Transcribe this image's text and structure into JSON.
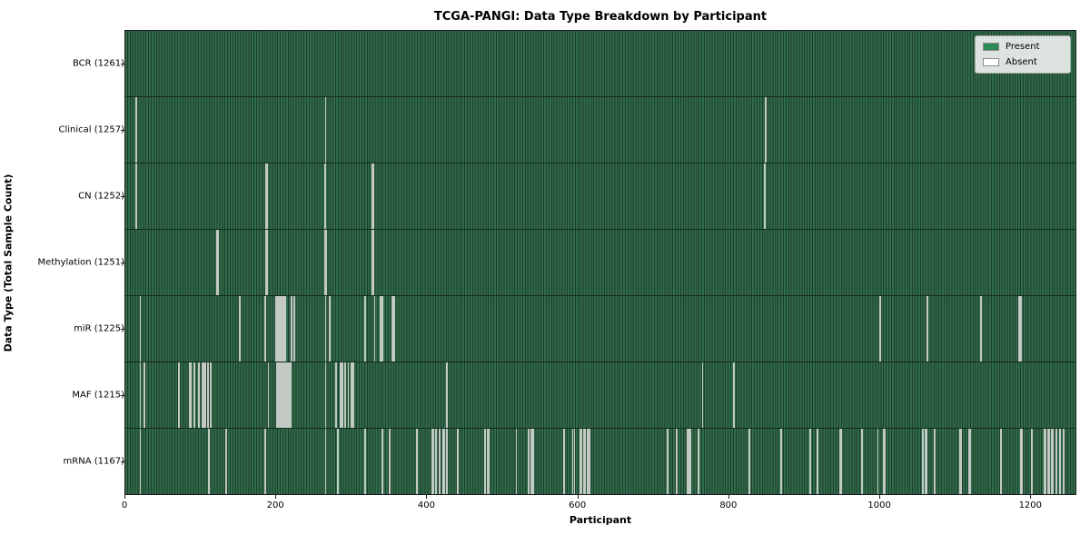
{
  "chart_data": {
    "type": "heatmap",
    "title": "TCGA-PANGI: Data Type Breakdown by Participant",
    "xlabel": "Participant",
    "ylabel": "Data Type (Total Sample Count)",
    "x_ticks": [
      0,
      200,
      400,
      600,
      800,
      1000,
      1200
    ],
    "total_participants": 1261,
    "grid": false,
    "legend": {
      "position": "upper-right",
      "entries": [
        {
          "label": "Present",
          "color": "#2e8b57"
        },
        {
          "label": "Absent",
          "color": "#ffffff"
        }
      ]
    },
    "rows": [
      {
        "name": "BCR",
        "label": "BCR (1261)",
        "present_count": 1261,
        "absent_participants": []
      },
      {
        "name": "Clinical",
        "label": "Clinical (1257)",
        "present_count": 1257,
        "absent_participants": [
          13,
          14,
          265,
          849
        ]
      },
      {
        "name": "CN",
        "label": "CN (1252)",
        "present_count": 1252,
        "absent_participants": [
          13,
          14,
          186,
          187,
          264,
          265,
          327,
          328,
          848
        ]
      },
      {
        "name": "Methylation",
        "label": "Methylation (1251)",
        "present_count": 1251,
        "absent_participants": [
          121,
          122,
          186,
          187,
          264,
          265,
          266,
          327,
          328,
          329
        ]
      },
      {
        "name": "miR",
        "label": "miR (1225)",
        "present_count": 1225,
        "absent_participants": [
          19,
          151,
          185,
          199,
          200,
          201,
          202,
          204,
          205,
          207,
          208,
          209,
          211,
          219,
          220,
          223,
          265,
          270,
          317,
          330,
          338,
          339,
          340,
          341,
          353,
          354,
          356,
          1000,
          1001,
          1063,
          1064,
          1135,
          1185,
          1186,
          1187,
          1188
        ]
      },
      {
        "name": "MAF",
        "label": "MAF (1215)",
        "present_count": 1215,
        "absent_participants": [
          19,
          24,
          70,
          84,
          85,
          86,
          90,
          91,
          96,
          97,
          101,
          102,
          104,
          105,
          108,
          109,
          112,
          113,
          189,
          200,
          201,
          203,
          204,
          205,
          207,
          208,
          209,
          211,
          212,
          213,
          215,
          217,
          219,
          265,
          279,
          285,
          287,
          291,
          295,
          299,
          301,
          302,
          426,
          765,
          806,
          807
        ]
      },
      {
        "name": "mRNA",
        "label": "mRNA (1167)",
        "present_count": 1167,
        "absent_participants": [
          19,
          110,
          133,
          185,
          265,
          281,
          317,
          340,
          350,
          386,
          406,
          407,
          408,
          411,
          412,
          416,
          417,
          421,
          422,
          425,
          426,
          440,
          476,
          477,
          480,
          481,
          518,
          534,
          535,
          538,
          539,
          540,
          581,
          593,
          595,
          603,
          604,
          608,
          609,
          613,
          614,
          615,
          718,
          719,
          731,
          745,
          746,
          747,
          748,
          749,
          759,
          760,
          827,
          828,
          869,
          870,
          908,
          917,
          918,
          948,
          949,
          976,
          977,
          998,
          1006,
          1007,
          1057,
          1058,
          1061,
          1062,
          1073,
          1074,
          1107,
          1108,
          1119,
          1120,
          1161,
          1162,
          1188,
          1189,
          1202,
          1203,
          1219,
          1220,
          1224,
          1225,
          1229,
          1230,
          1234,
          1235,
          1239,
          1240,
          1244,
          1245
        ]
      }
    ]
  }
}
